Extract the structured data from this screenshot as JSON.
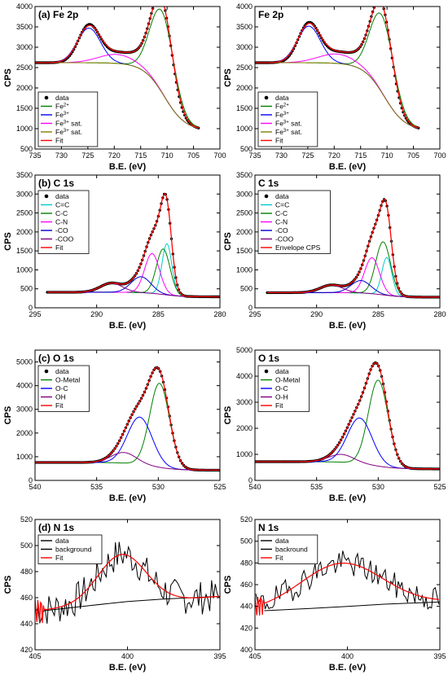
{
  "chart_data": [
    {
      "id": "fe-left",
      "type": "line",
      "title": "(a) Fe 2p",
      "xlabel": "B.E. (eV)",
      "ylabel": "CPS",
      "xlim": [
        735,
        700
      ],
      "ylim": [
        500,
        4000
      ],
      "xticks": [
        735,
        730,
        725,
        720,
        715,
        710,
        705,
        700
      ],
      "yticks": [
        500,
        1000,
        1500,
        2000,
        2500,
        3000,
        3500,
        4000
      ],
      "legend_position": "bottom-left",
      "data_range": [
        735,
        704
      ],
      "background": {
        "left": 2620,
        "right": 950,
        "center": 710.5,
        "width": 2.0
      },
      "series": [
        {
          "name": "data",
          "kind": "points",
          "color": "#000000",
          "peaks": [
            [
              724.8,
              900,
              2.0
            ],
            [
              711.0,
              2100,
              1.9
            ],
            [
              719.5,
              240,
              2.8
            ],
            [
              713.5,
              350,
              2.6
            ]
          ]
        },
        {
          "name": "Fe2+",
          "label_base": "Fe",
          "label_sup": "2+",
          "color": "#008000",
          "peaks": [
            [
              711.0,
              2000,
              2.2
            ]
          ]
        },
        {
          "name": "Fe3+",
          "label_base": "Fe",
          "label_sup": "3+",
          "color": "#0000ff",
          "peaks": [
            [
              724.8,
              850,
              2.2
            ]
          ]
        },
        {
          "name": "Fe3+ sat.",
          "label_base": "Fe",
          "label_sup": "3+",
          "label_tail": " sat.",
          "color": "#ff00ff",
          "peaks": [
            [
              719.5,
              220,
              3.5
            ]
          ]
        },
        {
          "name": "Fe3+ sat.",
          "label_base": "Fe",
          "label_sup": "3+",
          "label_tail": " sat.",
          "color": "#808000",
          "peaks": [
            [
              716,
              0,
              3
            ]
          ]
        },
        {
          "name": "Fit",
          "kind": "fit",
          "color": "#ff0000",
          "peaks": [
            [
              724.8,
              870,
              2.1
            ],
            [
              711.0,
              2100,
              1.95
            ],
            [
              719.5,
              230,
              3.0
            ],
            [
              713.5,
              300,
              2.8
            ]
          ]
        }
      ]
    },
    {
      "id": "fe-right",
      "type": "line",
      "title": "Fe 2p",
      "xlabel": "B.E. (eV)",
      "ylabel": "CPS",
      "xlim": [
        735,
        700
      ],
      "ylim": [
        500,
        4000
      ],
      "xticks": [
        735,
        730,
        725,
        720,
        715,
        710,
        705,
        700
      ],
      "yticks": [
        500,
        1000,
        1500,
        2000,
        2500,
        3000,
        3500,
        4000
      ],
      "legend_position": "bottom-left",
      "data_range": [
        735,
        704
      ],
      "background": {
        "left": 2620,
        "right": 950,
        "center": 710.5,
        "width": 2.0
      },
      "series": [
        {
          "name": "data",
          "kind": "points",
          "color": "#000000",
          "peaks": [
            [
              724.8,
              950,
              2.0
            ],
            [
              711.0,
              2000,
              1.9
            ],
            [
              719.5,
              250,
              2.8
            ],
            [
              713.5,
              330,
              2.6
            ]
          ]
        },
        {
          "name": "Fe2+",
          "label_base": "Fe",
          "label_sup": "2+",
          "color": "#008000",
          "peaks": [
            [
              711.0,
              1900,
              2.2
            ]
          ]
        },
        {
          "name": "Fe3+",
          "label_base": "Fe",
          "label_sup": "3+",
          "color": "#0000ff",
          "peaks": [
            [
              724.8,
              900,
              2.2
            ]
          ]
        },
        {
          "name": "Fe3+ sat.",
          "label_base": "Fe",
          "label_sup": "3+",
          "label_tail": " sat.",
          "color": "#ff00ff",
          "peaks": [
            [
              719.5,
              230,
              3.5
            ]
          ]
        },
        {
          "name": "Fe3+ sat.",
          "label_base": "Fe",
          "label_sup": "3+",
          "label_tail": " sat.",
          "color": "#808000",
          "peaks": [
            [
              716,
              0,
              3
            ]
          ]
        },
        {
          "name": "Fit",
          "kind": "fit",
          "color": "#ff0000",
          "peaks": [
            [
              724.8,
              920,
              2.1
            ],
            [
              711.0,
              1990,
              1.95
            ],
            [
              719.5,
              240,
              3.0
            ],
            [
              713.5,
              290,
              2.8
            ]
          ]
        }
      ]
    },
    {
      "id": "c-left",
      "type": "line",
      "title": "(b) C 1s",
      "xlabel": "B.E. (eV)",
      "ylabel": "CPS",
      "xlim": [
        295,
        280
      ],
      "ylim": [
        0,
        3500
      ],
      "xticks": [
        295,
        290,
        285,
        280
      ],
      "yticks": [
        0,
        500,
        1000,
        1500,
        2000,
        2500,
        3000,
        3500
      ],
      "legend_position": "top-left",
      "data_range": [
        294,
        280
      ],
      "background": {
        "left": 410,
        "right": 290,
        "center": 284.6,
        "width": 0.8
      },
      "series": [
        {
          "name": "data",
          "kind": "points",
          "color": "#000000",
          "peaks": [
            [
              284.6,
              1200,
              0.55
            ],
            [
              284.3,
              1350,
              0.4
            ],
            [
              285.5,
              1050,
              0.6
            ],
            [
              286.4,
              420,
              0.8
            ],
            [
              288.8,
              240,
              0.9
            ]
          ]
        },
        {
          "name": "C=C",
          "color": "#00cccc",
          "peaks": [
            [
              284.3,
              1350,
              0.4
            ]
          ]
        },
        {
          "name": "C-C",
          "color": "#008000",
          "peaks": [
            [
              284.6,
              1200,
              0.55
            ]
          ]
        },
        {
          "name": "C-N",
          "color": "#ff00ff",
          "peaks": [
            [
              285.5,
              1050,
              0.6
            ]
          ]
        },
        {
          "name": "-CO",
          "color": "#0000cc",
          "peaks": [
            [
              286.4,
              420,
              0.8
            ]
          ]
        },
        {
          "name": "-COO",
          "color": "#800080",
          "peaks": [
            [
              288.8,
              240,
              0.9
            ]
          ]
        },
        {
          "name": "Fit",
          "kind": "fit",
          "color": "#ff0000",
          "peaks": [
            [
              284.6,
              1200,
              0.55
            ],
            [
              284.3,
              1350,
              0.4
            ],
            [
              285.5,
              1050,
              0.6
            ],
            [
              286.4,
              420,
              0.8
            ],
            [
              288.8,
              240,
              0.9
            ]
          ]
        }
      ]
    },
    {
      "id": "c-right",
      "type": "line",
      "title": "C 1s",
      "xlabel": "B.E. (eV)",
      "ylabel": "CPS",
      "xlim": [
        295,
        280
      ],
      "ylim": [
        0,
        3500
      ],
      "xticks": [
        295,
        290,
        285,
        280
      ],
      "yticks": [
        0,
        500,
        1000,
        1500,
        2000,
        2500,
        3000,
        3500
      ],
      "legend_position": "top-left",
      "data_range": [
        294,
        280
      ],
      "background": {
        "left": 400,
        "right": 280,
        "center": 284.6,
        "width": 0.8
      },
      "series": [
        {
          "name": "data",
          "kind": "points",
          "color": "#000000",
          "peaks": [
            [
              284.6,
              1400,
              0.6
            ],
            [
              284.3,
              1000,
              0.4
            ],
            [
              285.5,
              950,
              0.6
            ],
            [
              286.4,
              330,
              0.8
            ],
            [
              288.8,
              200,
              0.9
            ]
          ]
        },
        {
          "name": "C=C",
          "color": "#00cccc",
          "peaks": [
            [
              284.3,
              1000,
              0.4
            ]
          ]
        },
        {
          "name": "C-C",
          "color": "#008000",
          "peaks": [
            [
              284.6,
              1400,
              0.6
            ]
          ]
        },
        {
          "name": "C-N",
          "color": "#ff00ff",
          "peaks": [
            [
              285.5,
              950,
              0.6
            ]
          ]
        },
        {
          "name": "-CO",
          "color": "#0000cc",
          "peaks": [
            [
              286.4,
              330,
              0.8
            ]
          ]
        },
        {
          "name": "-COO",
          "color": "#800080",
          "peaks": [
            [
              288.8,
              200,
              0.9
            ]
          ]
        },
        {
          "name": "Envelope CPS",
          "kind": "fit",
          "color": "#ff0000",
          "peaks": [
            [
              284.6,
              1400,
              0.6
            ],
            [
              284.3,
              1000,
              0.4
            ],
            [
              285.5,
              950,
              0.6
            ],
            [
              286.4,
              330,
              0.8
            ],
            [
              288.8,
              200,
              0.9
            ]
          ]
        }
      ]
    },
    {
      "id": "o-left",
      "type": "line",
      "title": "(c) O 1s",
      "xlabel": "B.E. (eV)",
      "ylabel": "CPS",
      "xlim": [
        540,
        525
      ],
      "ylim": [
        0,
        5500
      ],
      "xticks": [
        540,
        535,
        530,
        525
      ],
      "yticks": [
        0,
        1000,
        2000,
        3000,
        4000,
        5000
      ],
      "legend_position": "top-left",
      "data_range": [
        540,
        525
      ],
      "background": {
        "left": 760,
        "right": 430,
        "center": 530.5,
        "width": 1.0
      },
      "series": [
        {
          "name": "data",
          "kind": "points",
          "color": "#000000",
          "peaks": [
            [
              529.9,
              3550,
              0.8
            ],
            [
              531.5,
              2000,
              1.0
            ],
            [
              532.8,
              450,
              1.0
            ]
          ]
        },
        {
          "name": "O-Metal",
          "color": "#008000",
          "peaks": [
            [
              529.9,
              3550,
              0.8
            ]
          ]
        },
        {
          "name": "O-C",
          "color": "#0000ff",
          "peaks": [
            [
              531.5,
              2000,
              1.0
            ]
          ]
        },
        {
          "name": "OH",
          "color": "#800080",
          "peaks": [
            [
              532.8,
              450,
              1.0
            ]
          ]
        },
        {
          "name": "Fit",
          "kind": "fit",
          "color": "#ff0000",
          "peaks": [
            [
              529.9,
              3550,
              0.8
            ],
            [
              531.5,
              2000,
              1.0
            ],
            [
              532.8,
              450,
              1.0
            ]
          ]
        }
      ]
    },
    {
      "id": "o-right",
      "type": "line",
      "title": "O 1s",
      "xlabel": "B.E. (eV)",
      "ylabel": "CPS",
      "xlim": [
        540,
        525
      ],
      "ylim": [
        0,
        5000
      ],
      "xticks": [
        540,
        535,
        530,
        525
      ],
      "yticks": [
        0,
        1000,
        2000,
        3000,
        4000,
        5000
      ],
      "legend_position": "top-left",
      "data_range": [
        540,
        525
      ],
      "background": {
        "left": 720,
        "right": 440,
        "center": 530.5,
        "width": 1.0
      },
      "series": [
        {
          "name": "data",
          "kind": "points",
          "color": "#000000",
          "peaks": [
            [
              530.0,
              3300,
              0.8
            ],
            [
              531.5,
              1750,
              1.0
            ],
            [
              533.0,
              300,
              1.0
            ]
          ]
        },
        {
          "name": "O-Metal",
          "color": "#008000",
          "peaks": [
            [
              530.0,
              3300,
              0.8
            ]
          ]
        },
        {
          "name": "O-C",
          "color": "#0000ff",
          "peaks": [
            [
              531.5,
              1750,
              1.0
            ]
          ]
        },
        {
          "name": "O-H",
          "color": "#800080",
          "peaks": [
            [
              533.0,
              300,
              1.0
            ]
          ]
        },
        {
          "name": "Fit",
          "kind": "fit",
          "color": "#ff0000",
          "peaks": [
            [
              530.0,
              3300,
              0.8
            ],
            [
              531.5,
              1750,
              1.0
            ],
            [
              533.0,
              300,
              1.0
            ]
          ]
        }
      ]
    },
    {
      "id": "n-left",
      "type": "line",
      "title": "(d) N 1s",
      "xlabel": "B.E. (eV)",
      "ylabel": "CPS",
      "xlim": [
        405,
        395
      ],
      "ylim": [
        420,
        520
      ],
      "xticks": [
        405,
        400,
        395
      ],
      "yticks": [
        420,
        440,
        460,
        480,
        500,
        520
      ],
      "legend_position": "top-left",
      "noise": {
        "from": 405,
        "to": 395,
        "base": 450,
        "end": 461,
        "center": 400.3,
        "width": 1.3,
        "height": 38,
        "amp": 13,
        "seed": 7
      },
      "series": [
        {
          "name": "data",
          "kind": "noise",
          "color": "#000000"
        },
        {
          "name": "background",
          "kind": "baseline",
          "color": "#000000",
          "values": [
            [
              404.5,
              450
            ],
            [
              402,
              454
            ],
            [
              400,
              457
            ],
            [
              398,
              459
            ],
            [
              395,
              461
            ]
          ]
        },
        {
          "name": "Fit",
          "kind": "nfit",
          "color": "#ff0000",
          "base": 450,
          "end": 461,
          "center": 400.3,
          "width": 1.3,
          "height": 38
        }
      ]
    },
    {
      "id": "n-right",
      "type": "line",
      "title": "N 1s",
      "xlabel": "B.E. (eV)",
      "ylabel": "CPS",
      "xlim": [
        405,
        395
      ],
      "ylim": [
        400,
        520
      ],
      "xticks": [
        405,
        400,
        395
      ],
      "yticks": [
        400,
        420,
        440,
        460,
        480,
        500,
        520
      ],
      "legend_position": "top-left",
      "noise": {
        "from": 405,
        "to": 395,
        "base": 436,
        "end": 444,
        "center": 400.3,
        "width": 2.2,
        "height": 40,
        "amp": 12,
        "seed": 19
      },
      "series": [
        {
          "name": "data",
          "kind": "noise",
          "color": "#000000"
        },
        {
          "name": "backround",
          "kind": "baseline",
          "color": "#000000",
          "values": [
            [
              404.5,
              436
            ],
            [
              402,
              438
            ],
            [
              400,
              440
            ],
            [
              398,
              442
            ],
            [
              395,
              444
            ]
          ]
        },
        {
          "name": "Fit",
          "kind": "nfit",
          "color": "#ff0000",
          "base": 436,
          "end": 444,
          "center": 400.3,
          "width": 2.2,
          "height": 40
        }
      ]
    }
  ]
}
